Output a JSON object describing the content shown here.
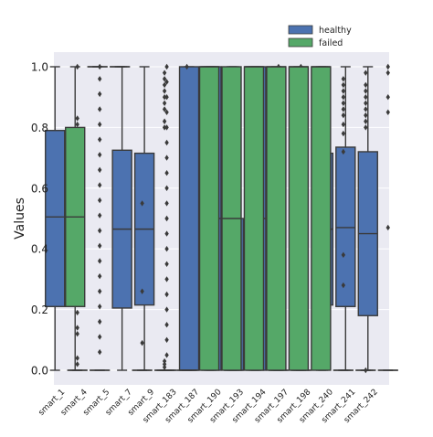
{
  "chart_data": {
    "type": "box",
    "title": "",
    "xlabel": "",
    "ylabel": "Values",
    "ylim": [
      0.0,
      1.0
    ],
    "yticks": [
      "0.0",
      "0.2",
      "0.4",
      "0.6",
      "0.8",
      "1.0"
    ],
    "grid": true,
    "legend_position": "top-right",
    "categories": [
      "smart_1",
      "smart_4",
      "smart_5",
      "smart_7",
      "smart_9",
      "smart_183",
      "smart_187",
      "smart_190",
      "smart_193",
      "smart_194",
      "smart_197",
      "smart_198",
      "smart_240",
      "smart_241",
      "smart_242"
    ],
    "series": [
      {
        "name": "healthy",
        "color": "#4c72b0",
        "boxes": [
          {
            "whislo": 0.0,
            "q1": 0.21,
            "med": 0.505,
            "q3": 0.79,
            "whishi": 1.0,
            "fliers": []
          },
          {
            "whislo": 0.0,
            "q1": 0.0,
            "med": 0.0,
            "q3": 0.0,
            "whishi": 0.0,
            "fliers": [
              0.19,
              0.14,
              0.12,
              0.04,
              0.02,
              0.47,
              0.56,
              0.6,
              0.64,
              0.69,
              0.75,
              0.78,
              0.81,
              0.83,
              1.0
            ]
          },
          {
            "whislo": 0.0,
            "q1": 0.0,
            "med": 0.0,
            "q3": 0.0,
            "whishi": 0.0,
            "fliers": [
              0.06,
              0.11,
              0.16,
              0.21,
              0.26,
              0.31,
              0.36,
              0.41,
              0.46,
              0.51,
              0.56,
              0.61,
              0.66,
              0.71,
              0.76,
              0.81,
              0.86,
              0.91,
              0.96,
              1.0
            ]
          },
          {
            "whislo": 0.0,
            "q1": 0.205,
            "med": 0.465,
            "q3": 0.725,
            "whishi": 1.0,
            "fliers": []
          },
          {
            "whislo": 0.0,
            "q1": 0.215,
            "med": 0.465,
            "q3": 0.715,
            "whishi": 1.0,
            "fliers": []
          },
          {
            "whislo": 0.0,
            "q1": 0.0,
            "med": 0.0,
            "q3": 0.0,
            "whishi": 0.0,
            "fliers": [
              0.05,
              0.1,
              0.15,
              0.2,
              0.25,
              0.3,
              0.35,
              0.4,
              0.45,
              0.5,
              0.55,
              0.6,
              0.65,
              0.7,
              0.75,
              0.8,
              0.85,
              0.9,
              0.95,
              1.0
            ]
          },
          {
            "whislo": 0.0,
            "q1": 0.0,
            "med": 0.0,
            "q3": 1.0,
            "whishi": 1.0,
            "fliers": []
          },
          {
            "whislo": 0.0,
            "q1": 0.0,
            "med": 0.5,
            "q3": 1.0,
            "whishi": 1.0,
            "fliers": []
          },
          {
            "whislo": 0.0,
            "q1": 0.0,
            "med": 0.0,
            "q3": 0.5,
            "whishi": 1.0,
            "fliers": []
          },
          {
            "whislo": 0.0,
            "q1": 0.0,
            "med": 0.5,
            "q3": 1.0,
            "whishi": 1.0,
            "fliers": []
          },
          {
            "whislo": 0.0,
            "q1": 0.0,
            "med": 0.0,
            "q3": 0.0,
            "whishi": 0.0,
            "fliers": [
              0.08,
              0.18,
              0.3,
              0.42,
              0.55,
              0.68,
              0.8,
              0.92,
              1.0
            ]
          },
          {
            "whislo": 0.0,
            "q1": 0.0,
            "med": 0.0,
            "q3": 0.0,
            "whishi": 0.0,
            "fliers": [
              0.1,
              0.25,
              0.4,
              0.55,
              0.7,
              0.85,
              1.0
            ]
          },
          {
            "whislo": 0.0,
            "q1": 0.215,
            "med": 0.465,
            "q3": 0.715,
            "whishi": 1.0,
            "fliers": []
          },
          {
            "whislo": 0.0,
            "q1": 0.21,
            "med": 0.47,
            "q3": 0.735,
            "whishi": 1.0,
            "fliers": []
          },
          {
            "whislo": 0.0,
            "q1": 0.18,
            "med": 0.45,
            "q3": 0.72,
            "whishi": 1.0,
            "fliers": []
          }
        ]
      },
      {
        "name": "failed",
        "color": "#55a868",
        "boxes": [
          {
            "whislo": 0.0,
            "q1": 0.21,
            "med": 0.505,
            "q3": 0.8,
            "whishi": 1.0,
            "fliers": []
          },
          {
            "whislo": 1.0,
            "q1": 1.0,
            "med": 1.0,
            "q3": 1.0,
            "whishi": 1.0,
            "fliers": []
          },
          {
            "whislo": 1.0,
            "q1": 1.0,
            "med": 1.0,
            "q3": 1.0,
            "whishi": 1.0,
            "fliers": []
          },
          {
            "whislo": 0.0,
            "q1": 0.0,
            "med": 0.0,
            "q3": 0.0,
            "whishi": 0.0,
            "fliers": [
              0.09,
              0.26,
              0.55
            ]
          },
          {
            "whislo": 0.0,
            "q1": 0.0,
            "med": 0.0,
            "q3": 0.0,
            "whishi": 0.0,
            "fliers": [
              0.98,
              0.96,
              0.94,
              0.92,
              0.9,
              0.88,
              0.86,
              0.82,
              0.8,
              0.03,
              0.02,
              0.01
            ]
          },
          {
            "whislo": 0.0,
            "q1": 0.0,
            "med": 0.0,
            "q3": 0.0,
            "whishi": 0.0,
            "fliers": [
              1.0
            ]
          },
          {
            "whislo": 0.0,
            "q1": 0.0,
            "med": 1.0,
            "q3": 1.0,
            "whishi": 1.0,
            "fliers": []
          },
          {
            "whislo": 0.0,
            "q1": 0.0,
            "med": 0.5,
            "q3": 1.0,
            "whishi": 1.0,
            "fliers": []
          },
          {
            "whislo": 0.0,
            "q1": 0.0,
            "med": 1.0,
            "q3": 1.0,
            "whishi": 1.0,
            "fliers": []
          },
          {
            "whislo": 0.0,
            "q1": 0.0,
            "med": 1.0,
            "q3": 1.0,
            "whishi": 1.0,
            "fliers": []
          },
          {
            "whislo": 0.0,
            "q1": 0.0,
            "med": 1.0,
            "q3": 1.0,
            "whishi": 1.0,
            "fliers": []
          },
          {
            "whislo": 0.0,
            "q1": 0.0,
            "med": 1.0,
            "q3": 1.0,
            "whishi": 1.0,
            "fliers": []
          },
          {
            "whislo": 0.0,
            "q1": 0.0,
            "med": 0.0,
            "q3": 0.0,
            "whishi": 0.0,
            "fliers": [
              0.96,
              0.94,
              0.92,
              0.9,
              0.88,
              0.86,
              0.84,
              0.81,
              0.78,
              0.72,
              0.38,
              0.28
            ]
          },
          {
            "whislo": 0.0,
            "q1": 0.0,
            "med": 0.0,
            "q3": 0.0,
            "whishi": 0.0,
            "fliers": [
              0.98,
              0.94,
              0.92,
              0.9,
              0.88,
              0.86,
              0.84,
              0.82,
              0.8,
              0.0
            ]
          },
          {
            "whislo": 0.0,
            "q1": 0.0,
            "med": 0.0,
            "q3": 0.0,
            "whishi": 0.0,
            "fliers": [
              1.0,
              0.98,
              0.9,
              0.85,
              0.47
            ]
          }
        ]
      }
    ]
  }
}
